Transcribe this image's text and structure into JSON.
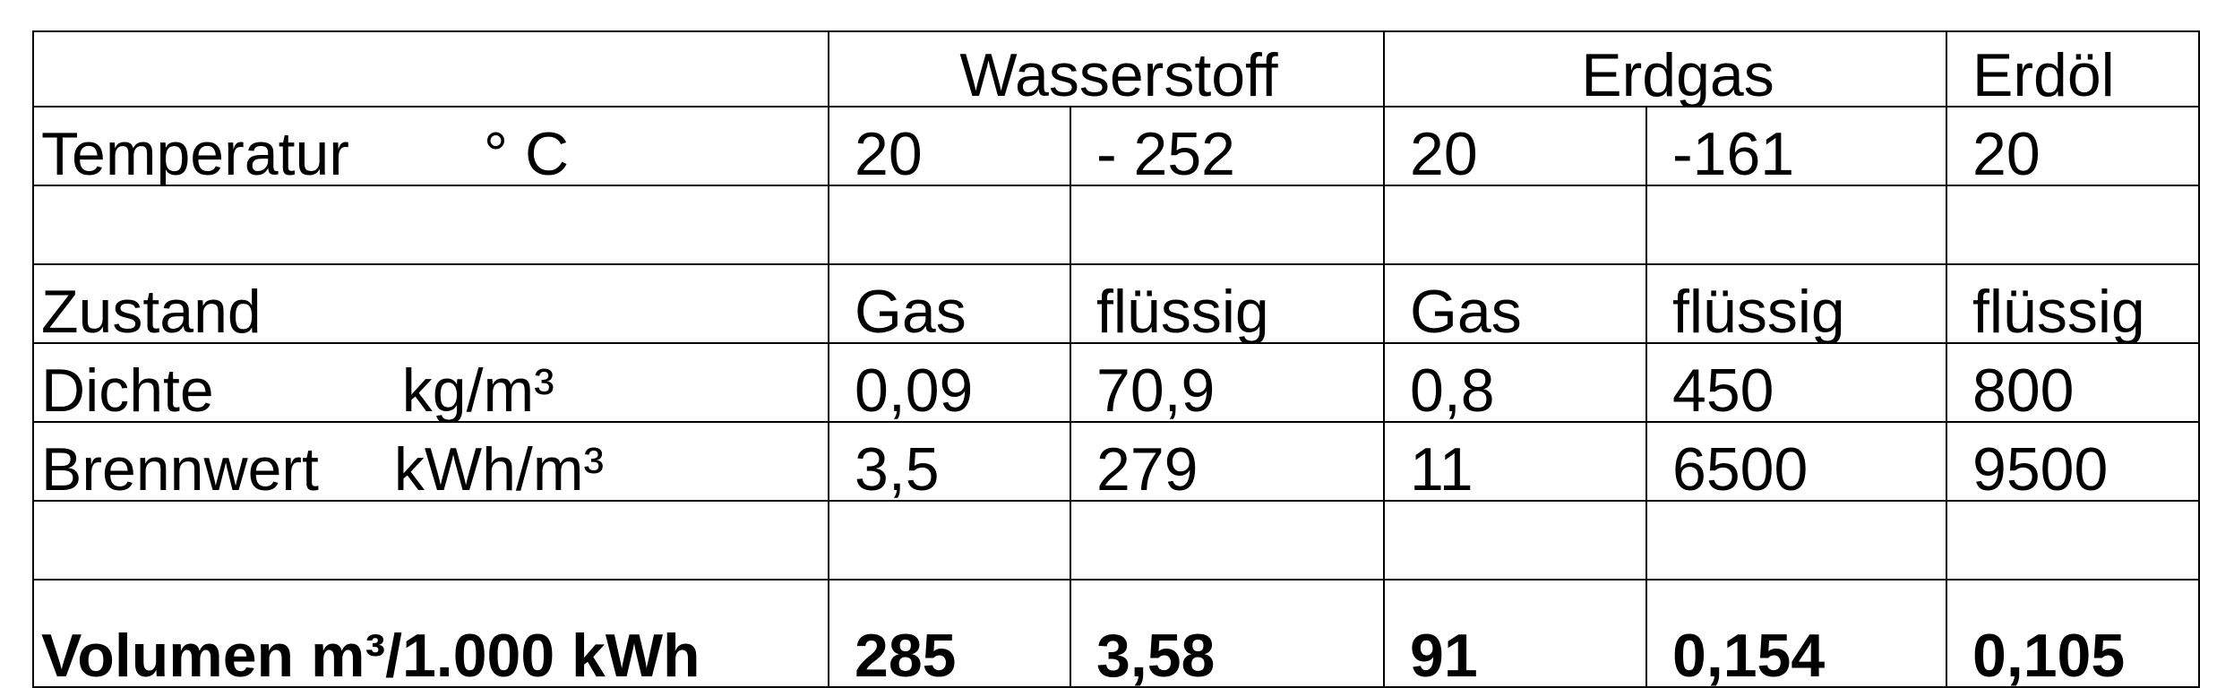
{
  "groups": {
    "wasserstoff": "Wasserstoff",
    "erdgas": "Erdgas",
    "erdoel": "Erdöl"
  },
  "rows": {
    "temperatur": {
      "label": "Temperatur",
      "unit": "° C",
      "values": [
        "20",
        "- 252",
        "20",
        "-161",
        "20"
      ]
    },
    "zustand": {
      "label": "Zustand",
      "values": [
        "Gas",
        "flüssig",
        "Gas",
        "flüssig",
        "flüssig"
      ]
    },
    "dichte": {
      "label": "Dichte",
      "unit": "kg/m³",
      "values": [
        "0,09",
        "70,9",
        "0,8",
        "450",
        "800"
      ]
    },
    "brennwert": {
      "label": "Brennwert",
      "unit": "kWh/m³",
      "values": [
        "3,5",
        "279",
        "11",
        "6500",
        "9500"
      ]
    },
    "volumen": {
      "label": "Volumen m³/1.000 kWh",
      "values": [
        "285",
        "3,58",
        "91",
        "0,154",
        "0,105"
      ]
    }
  }
}
